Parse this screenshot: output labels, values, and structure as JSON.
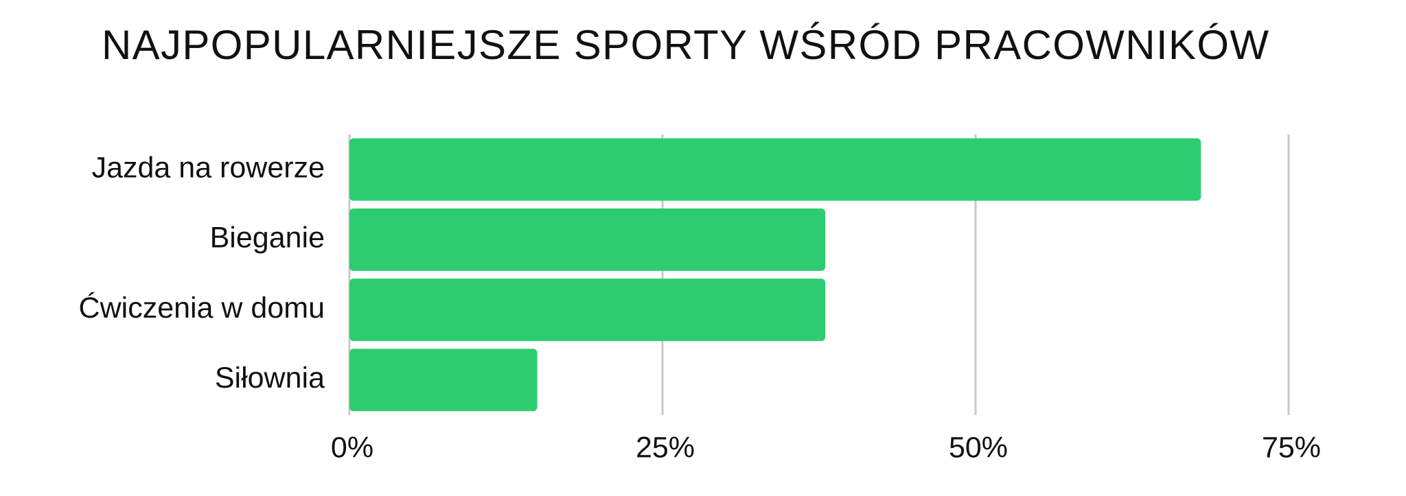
{
  "chart_data": {
    "type": "bar",
    "orientation": "horizontal",
    "title": "NAJPOPULARNIEJSZE SPORTY WŚRÓD PRACOWNIKÓW",
    "categories": [
      "Jazda na rowerze",
      "Bieganie",
      "Ćwiczenia w domu",
      "Siłownia"
    ],
    "values": [
      68,
      38,
      38,
      15
    ],
    "color": "#2ecc71",
    "xlim": [
      0,
      75
    ],
    "xticks": [
      {
        "value": 0,
        "label": "0%"
      },
      {
        "value": 25,
        "label": "25%"
      },
      {
        "value": 50,
        "label": "50%"
      },
      {
        "value": 75,
        "label": "75%"
      }
    ],
    "grid": true
  }
}
